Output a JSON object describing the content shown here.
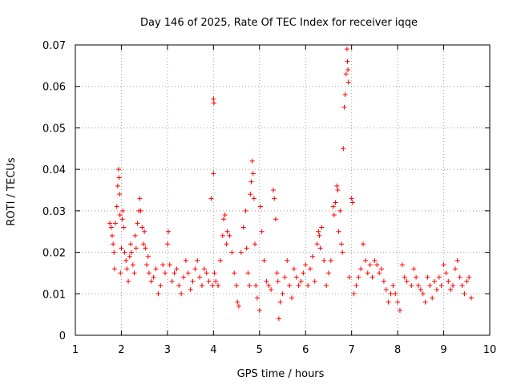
{
  "chart_data": {
    "type": "scatter",
    "title": "Day 146 of 2025, Rate Of TEC Index for receiver iqqe",
    "xlabel": "GPS time / hours",
    "ylabel": "ROTI / TECUs",
    "xlim": [
      1,
      10
    ],
    "ylim": [
      0,
      0.07
    ],
    "x_ticks": [
      1,
      2,
      3,
      4,
      5,
      6,
      7,
      8,
      9,
      10
    ],
    "x_tick_labels": [
      "1",
      "2",
      "3",
      "4",
      "5",
      "6",
      "7",
      "8",
      "9",
      "10"
    ],
    "y_ticks": [
      0,
      0.01,
      0.02,
      0.03,
      0.04,
      0.05,
      0.06,
      0.07
    ],
    "y_tick_labels": [
      "0",
      "0.01",
      "0.02",
      "0.03",
      "0.04",
      "0.05",
      "0.06",
      "0.07"
    ],
    "grid": true,
    "marker": "+",
    "colors": {
      "series": "#ff0000",
      "grid": "#a0a0a0",
      "axis": "#000000"
    },
    "series": [
      {
        "name": "ROTI",
        "points": [
          [
            1.75,
            0.027
          ],
          [
            1.78,
            0.026
          ],
          [
            1.8,
            0.024
          ],
          [
            1.82,
            0.022
          ],
          [
            1.84,
            0.02
          ],
          [
            1.85,
            0.016
          ],
          [
            1.87,
            0.027
          ],
          [
            1.9,
            0.031
          ],
          [
            1.92,
            0.036
          ],
          [
            1.94,
            0.04
          ],
          [
            1.95,
            0.038
          ],
          [
            1.96,
            0.034
          ],
          [
            1.97,
            0.029
          ],
          [
            1.98,
            0.015
          ],
          [
            2.0,
            0.021
          ],
          [
            2.02,
            0.028
          ],
          [
            2.03,
            0.03
          ],
          [
            2.05,
            0.026
          ],
          [
            2.07,
            0.02
          ],
          [
            2.1,
            0.018
          ],
          [
            2.12,
            0.016
          ],
          [
            2.15,
            0.013
          ],
          [
            2.18,
            0.019
          ],
          [
            2.2,
            0.022
          ],
          [
            2.22,
            0.02
          ],
          [
            2.25,
            0.017
          ],
          [
            2.28,
            0.015
          ],
          [
            2.3,
            0.024
          ],
          [
            2.32,
            0.021
          ],
          [
            2.35,
            0.027
          ],
          [
            2.38,
            0.03
          ],
          [
            2.4,
            0.033
          ],
          [
            2.42,
            0.03
          ],
          [
            2.45,
            0.026
          ],
          [
            2.48,
            0.022
          ],
          [
            2.5,
            0.025
          ],
          [
            2.52,
            0.021
          ],
          [
            2.55,
            0.017
          ],
          [
            2.58,
            0.019
          ],
          [
            2.6,
            0.015
          ],
          [
            2.65,
            0.013
          ],
          [
            2.7,
            0.014
          ],
          [
            2.75,
            0.016
          ],
          [
            2.8,
            0.01
          ],
          [
            2.85,
            0.012
          ],
          [
            2.9,
            0.017
          ],
          [
            2.95,
            0.015
          ],
          [
            3.0,
            0.022
          ],
          [
            3.02,
            0.025
          ],
          [
            3.05,
            0.017
          ],
          [
            3.1,
            0.013
          ],
          [
            3.15,
            0.015
          ],
          [
            3.2,
            0.016
          ],
          [
            3.25,
            0.012
          ],
          [
            3.3,
            0.01
          ],
          [
            3.35,
            0.014
          ],
          [
            3.4,
            0.018
          ],
          [
            3.45,
            0.015
          ],
          [
            3.5,
            0.011
          ],
          [
            3.55,
            0.013
          ],
          [
            3.6,
            0.016
          ],
          [
            3.65,
            0.018
          ],
          [
            3.7,
            0.014
          ],
          [
            3.75,
            0.012
          ],
          [
            3.8,
            0.016
          ],
          [
            3.85,
            0.015
          ],
          [
            3.9,
            0.013
          ],
          [
            3.95,
            0.033
          ],
          [
            3.98,
            0.012
          ],
          [
            4.0,
            0.057
          ],
          [
            4.01,
            0.056
          ],
          [
            4.0,
            0.039
          ],
          [
            4.02,
            0.015
          ],
          [
            4.05,
            0.013
          ],
          [
            4.1,
            0.012
          ],
          [
            4.15,
            0.018
          ],
          [
            4.2,
            0.024
          ],
          [
            4.22,
            0.028
          ],
          [
            4.25,
            0.029
          ],
          [
            4.28,
            0.022
          ],
          [
            4.3,
            0.025
          ],
          [
            4.35,
            0.024
          ],
          [
            4.4,
            0.02
          ],
          [
            4.45,
            0.015
          ],
          [
            4.5,
            0.012
          ],
          [
            4.52,
            0.008
          ],
          [
            4.55,
            0.007
          ],
          [
            4.6,
            0.02
          ],
          [
            4.65,
            0.026
          ],
          [
            4.7,
            0.03
          ],
          [
            4.72,
            0.021
          ],
          [
            4.75,
            0.015
          ],
          [
            4.78,
            0.012
          ],
          [
            4.8,
            0.034
          ],
          [
            4.82,
            0.037
          ],
          [
            4.84,
            0.042
          ],
          [
            4.86,
            0.039
          ],
          [
            4.88,
            0.033
          ],
          [
            4.9,
            0.022
          ],
          [
            4.92,
            0.012
          ],
          [
            4.95,
            0.009
          ],
          [
            5.0,
            0.006
          ],
          [
            5.02,
            0.031
          ],
          [
            5.05,
            0.025
          ],
          [
            5.1,
            0.018
          ],
          [
            5.15,
            0.013
          ],
          [
            5.2,
            0.012
          ],
          [
            5.25,
            0.011
          ],
          [
            5.3,
            0.035
          ],
          [
            5.32,
            0.033
          ],
          [
            5.35,
            0.028
          ],
          [
            5.38,
            0.015
          ],
          [
            5.4,
            0.013
          ],
          [
            5.42,
            0.004
          ],
          [
            5.45,
            0.008
          ],
          [
            5.5,
            0.01
          ],
          [
            5.55,
            0.014
          ],
          [
            5.6,
            0.018
          ],
          [
            5.65,
            0.012
          ],
          [
            5.7,
            0.009
          ],
          [
            5.75,
            0.016
          ],
          [
            5.8,
            0.014
          ],
          [
            5.85,
            0.012
          ],
          [
            5.9,
            0.013
          ],
          [
            5.95,
            0.015
          ],
          [
            6.0,
            0.017
          ],
          [
            6.05,
            0.012
          ],
          [
            6.1,
            0.016
          ],
          [
            6.15,
            0.019
          ],
          [
            6.2,
            0.013
          ],
          [
            6.25,
            0.022
          ],
          [
            6.28,
            0.025
          ],
          [
            6.3,
            0.024
          ],
          [
            6.32,
            0.021
          ],
          [
            6.35,
            0.026
          ],
          [
            6.4,
            0.018
          ],
          [
            6.45,
            0.012
          ],
          [
            6.5,
            0.015
          ],
          [
            6.55,
            0.018
          ],
          [
            6.6,
            0.031
          ],
          [
            6.62,
            0.029
          ],
          [
            6.65,
            0.032
          ],
          [
            6.68,
            0.036
          ],
          [
            6.7,
            0.035
          ],
          [
            6.72,
            0.025
          ],
          [
            6.75,
            0.03
          ],
          [
            6.78,
            0.022
          ],
          [
            6.8,
            0.02
          ],
          [
            6.82,
            0.045
          ],
          [
            6.84,
            0.055
          ],
          [
            6.86,
            0.058
          ],
          [
            6.88,
            0.063
          ],
          [
            6.9,
            0.069
          ],
          [
            6.91,
            0.066
          ],
          [
            6.92,
            0.064
          ],
          [
            6.93,
            0.061
          ],
          [
            6.95,
            0.014
          ],
          [
            7.0,
            0.033
          ],
          [
            7.02,
            0.032
          ],
          [
            7.05,
            0.01
          ],
          [
            7.1,
            0.012
          ],
          [
            7.15,
            0.014
          ],
          [
            7.2,
            0.016
          ],
          [
            7.25,
            0.022
          ],
          [
            7.3,
            0.018
          ],
          [
            7.35,
            0.015
          ],
          [
            7.4,
            0.017
          ],
          [
            7.45,
            0.014
          ],
          [
            7.5,
            0.018
          ],
          [
            7.55,
            0.017
          ],
          [
            7.6,
            0.015
          ],
          [
            7.65,
            0.016
          ],
          [
            7.7,
            0.013
          ],
          [
            7.75,
            0.011
          ],
          [
            7.8,
            0.008
          ],
          [
            7.85,
            0.01
          ],
          [
            7.9,
            0.012
          ],
          [
            7.95,
            0.01
          ],
          [
            8.0,
            0.008
          ],
          [
            8.05,
            0.006
          ],
          [
            8.1,
            0.017
          ],
          [
            8.15,
            0.014
          ],
          [
            8.2,
            0.013
          ],
          [
            8.3,
            0.012
          ],
          [
            8.35,
            0.016
          ],
          [
            8.4,
            0.014
          ],
          [
            8.45,
            0.012
          ],
          [
            8.5,
            0.011
          ],
          [
            8.55,
            0.01
          ],
          [
            8.6,
            0.008
          ],
          [
            8.65,
            0.014
          ],
          [
            8.7,
            0.012
          ],
          [
            8.75,
            0.009
          ],
          [
            8.8,
            0.013
          ],
          [
            8.85,
            0.011
          ],
          [
            8.9,
            0.014
          ],
          [
            8.95,
            0.012
          ],
          [
            9.0,
            0.017
          ],
          [
            9.05,
            0.015
          ],
          [
            9.1,
            0.013
          ],
          [
            9.15,
            0.011
          ],
          [
            9.2,
            0.012
          ],
          [
            9.25,
            0.016
          ],
          [
            9.3,
            0.018
          ],
          [
            9.35,
            0.014
          ],
          [
            9.4,
            0.012
          ],
          [
            9.45,
            0.01
          ],
          [
            9.5,
            0.013
          ],
          [
            9.55,
            0.014
          ],
          [
            9.6,
            0.009
          ]
        ]
      }
    ]
  }
}
